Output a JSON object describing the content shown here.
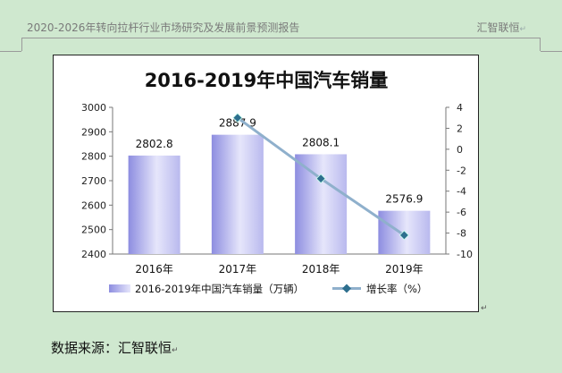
{
  "header": {
    "left_text": "2020-2026年转向拉杆行业市场研究及发展前景预测报告",
    "right_text": "汇智联恒",
    "paragraph_mark": "↵"
  },
  "footer": {
    "source_text": "数据来源：汇智联恒",
    "paragraph_mark": "↵"
  },
  "chart_data": {
    "type": "bar",
    "title": "2016-2019年中国汽车销量",
    "categories": [
      "2016年",
      "2017年",
      "2018年",
      "2019年"
    ],
    "series": [
      {
        "name": "2016-2019年中国汽车销量（万辆）",
        "type": "bar",
        "axis": "left",
        "values": [
          2802.8,
          2887.9,
          2808.1,
          2576.9
        ],
        "labels": [
          "2802.8",
          "2887.9",
          "2808.1",
          "2576.9"
        ],
        "color": "#9a9ae6"
      },
      {
        "name": "增长率（%）",
        "type": "line",
        "axis": "right",
        "values": [
          null,
          3.0,
          -2.8,
          -8.2
        ],
        "color": "#8fb0cc",
        "marker_color": "#2e6f8e"
      }
    ],
    "left_axis": {
      "ylim": [
        2400,
        3000
      ],
      "ticks": [
        2400,
        2500,
        2600,
        2700,
        2800,
        2900,
        3000
      ]
    },
    "right_axis": {
      "ylim": [
        -10,
        4
      ],
      "ticks": [
        -10,
        -8,
        -6,
        -4,
        -2,
        0,
        2,
        4
      ]
    },
    "legend_position": "bottom",
    "grid": false
  }
}
